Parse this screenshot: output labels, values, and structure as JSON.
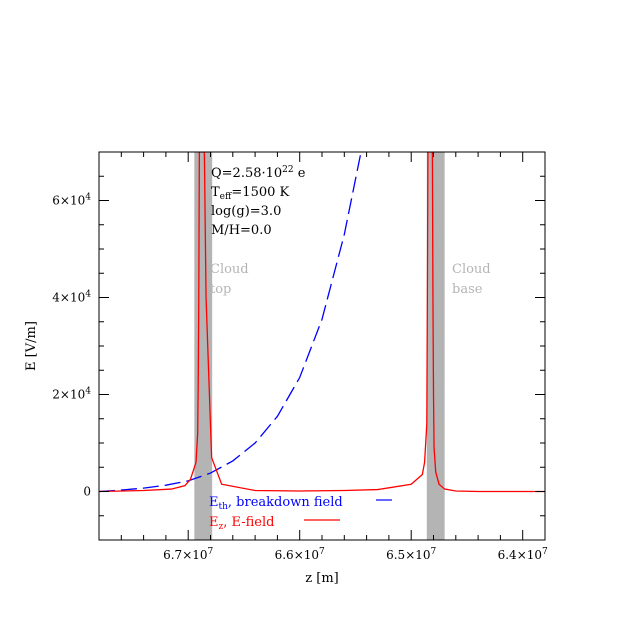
{
  "chart_data": {
    "type": "line",
    "title": "",
    "xlabel": "z [m]",
    "ylabel": "E [V/m]",
    "xlim": [
      67800000.0,
      63800000.0
    ],
    "ylim": [
      -10000,
      70000
    ],
    "x_reversed": true,
    "x_ticks": [
      {
        "value": 67000000.0,
        "mantissa": "6.7",
        "exp": "7"
      },
      {
        "value": 66000000.0,
        "mantissa": "6.6",
        "exp": "7"
      },
      {
        "value": 65000000.0,
        "mantissa": "6.5",
        "exp": "7"
      },
      {
        "value": 64000000.0,
        "mantissa": "6.4",
        "exp": "7"
      }
    ],
    "y_ticks": [
      {
        "value": 0,
        "mantissa": "0",
        "exp": ""
      },
      {
        "value": 20000,
        "mantissa": "2",
        "exp": "4"
      },
      {
        "value": 40000,
        "mantissa": "4",
        "exp": "4"
      },
      {
        "value": 60000,
        "mantissa": "6",
        "exp": "4"
      }
    ],
    "x_multiplier": "×10",
    "y_multiplier": "×10",
    "shaded_bands": [
      {
        "x_from": 66945000.0,
        "x_to": 66785000.0,
        "color": "#b4b4b4",
        "label_line1": "Cloud",
        "label_line2": "top"
      },
      {
        "x_from": 64860000.0,
        "x_to": 64700000.0,
        "color": "#b4b4b4",
        "label_line1": "Cloud",
        "label_line2": "base"
      }
    ],
    "annotations": {
      "q_prefix": "Q=2.58·10",
      "q_exp": "22",
      "q_suffix": " e",
      "t_prefix": "T",
      "t_sub": "eff",
      "t_suffix": "=1500 K",
      "logg": "log(g)=3.0",
      "mh": "M/H=0.0"
    },
    "series": [
      {
        "name_main": "E",
        "name_sub": "th",
        "name_rest": ", breakdown field",
        "color": "#0000ff",
        "style": "dashed",
        "x": [
          67800000.0,
          67600000.0,
          67400000.0,
          67200000.0,
          67000000.0,
          66800000.0,
          66600000.0,
          66400000.0,
          66200000.0,
          66000000.0,
          65800000.0,
          65600000.0,
          65450000.0
        ],
        "y": [
          0,
          300,
          700,
          1300,
          2200,
          3800,
          6300,
          10000,
          15500,
          23500,
          35500,
          53000,
          70000
        ]
      },
      {
        "name_main": "E",
        "name_sub": "z",
        "name_rest": ", E-field",
        "color": "#ff0000",
        "style": "solid",
        "x": [
          67800000.0,
          67400000.0,
          67150000.0,
          67030000.0,
          66980000.0,
          66930000.0,
          66915000.0,
          66910000.0,
          66905000.0,
          66900000.0,
          66890000.0,
          66865000.0,
          66855000.0,
          66840000.0,
          66790000.0,
          66700000.0,
          66400000.0,
          66000000.0,
          65600000.0,
          65300000.0,
          65000000.0,
          64900000.0,
          64880000.0,
          64860000.0,
          64855000.0,
          64850000.0,
          64835000.0,
          64820000.0,
          64810000.0,
          64805000.0,
          64800000.0,
          64795000.0,
          64780000.0,
          64750000.0,
          64700000.0,
          64600000.0,
          64400000.0,
          63800000.0
        ],
        "y": [
          0,
          200,
          500,
          1200,
          2500,
          6000,
          12000,
          23000,
          40000,
          70000,
          70000,
          70000,
          70000,
          40000,
          7000,
          1500,
          200,
          100,
          200,
          400,
          1500,
          3500,
          6000,
          14000,
          40000,
          70000,
          70000,
          70000,
          70000,
          40000,
          20000,
          9000,
          4000,
          1500,
          500,
          100,
          0,
          0
        ]
      }
    ]
  }
}
